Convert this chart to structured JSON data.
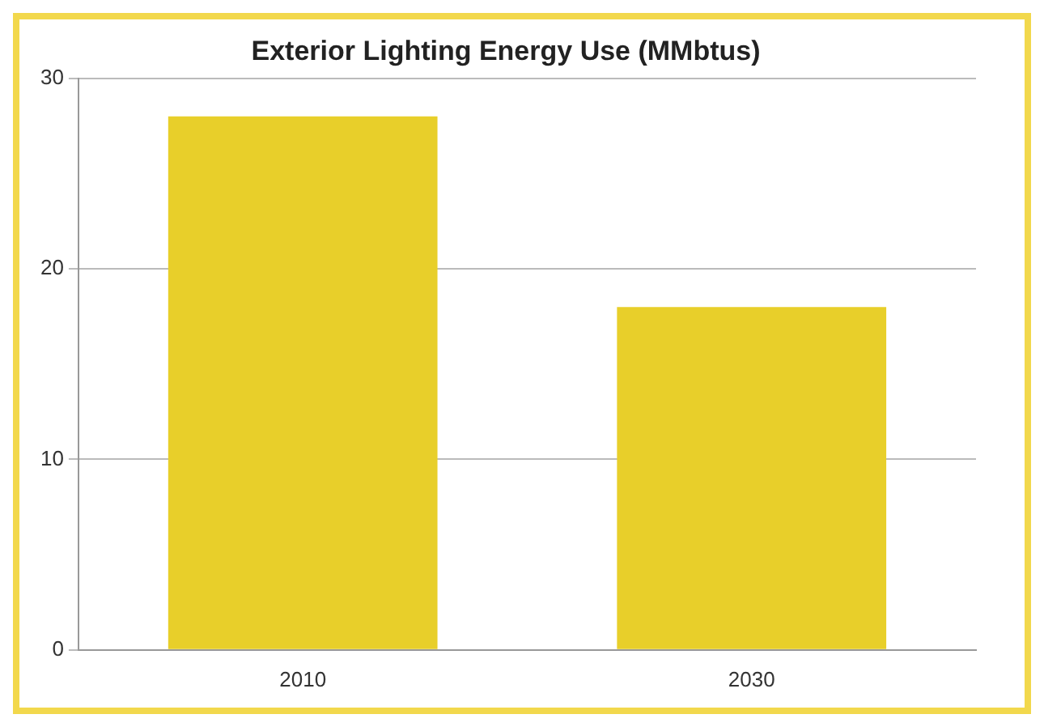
{
  "chart_data": {
    "type": "bar",
    "title": "Exterior Lighting Energy Use (MMbtus)",
    "categories": [
      "2010",
      "2030"
    ],
    "values": [
      28,
      18
    ],
    "color": "#e8cf2a",
    "ylim": [
      0,
      30
    ],
    "yticks": [
      0,
      10,
      20,
      30
    ],
    "grid": "y"
  }
}
